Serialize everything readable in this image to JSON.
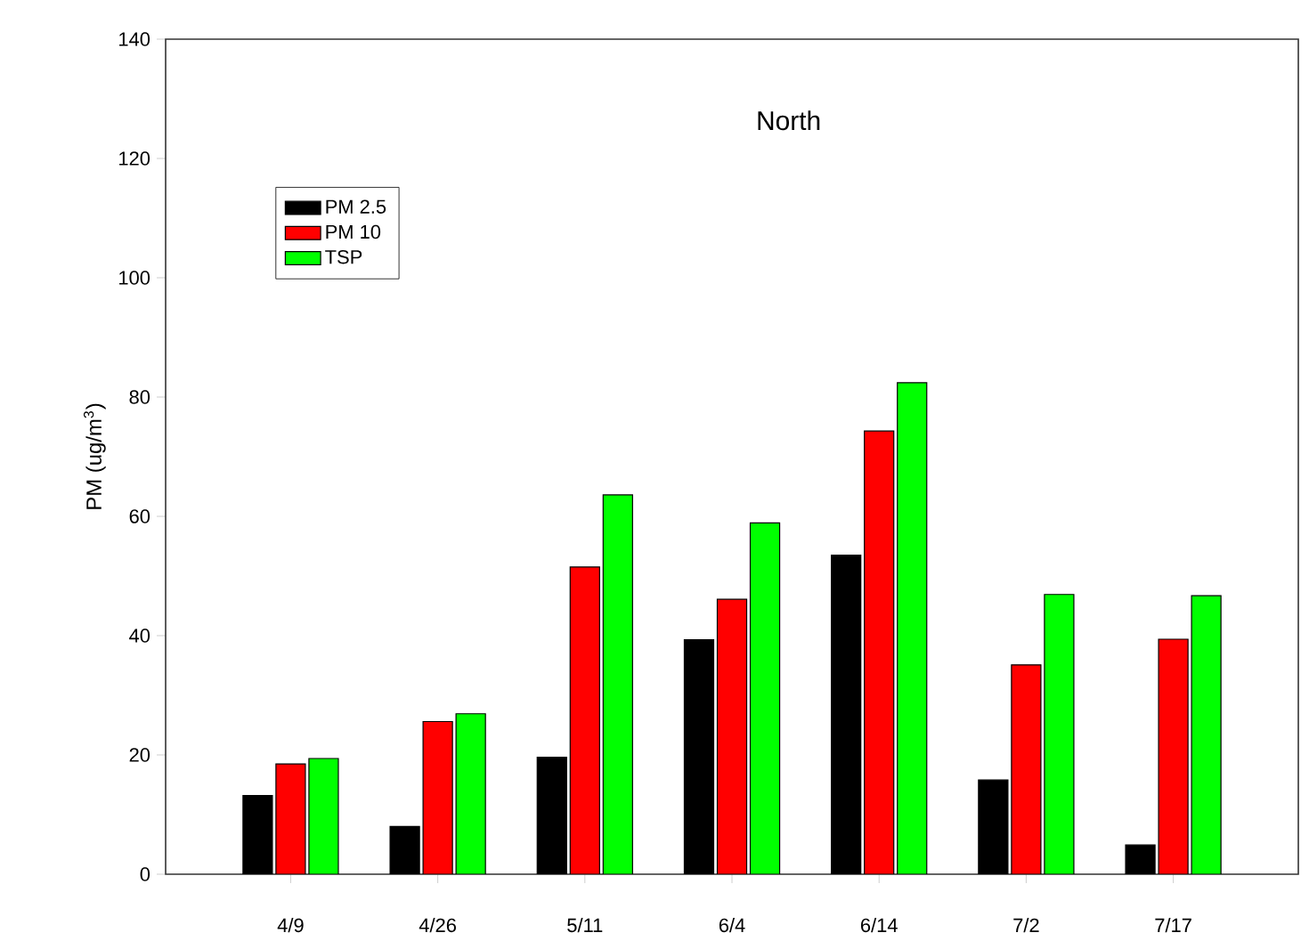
{
  "chart_data": {
    "type": "bar",
    "title": "North",
    "ylabel": "PM (ug/m$^{3}$)",
    "categories": [
      "4/9",
      "4/26",
      "5/11",
      "6/4",
      "6/14",
      "7/2",
      "7/17"
    ],
    "series": [
      {
        "name": "PM 2.5",
        "color": "#000000",
        "values": [
          13.2,
          8.0,
          19.6,
          39.3,
          53.5,
          15.8,
          4.9
        ]
      },
      {
        "name": "PM 10",
        "color": "#ff0000",
        "values": [
          18.5,
          25.6,
          51.5,
          46.1,
          74.3,
          35.1,
          39.4
        ]
      },
      {
        "name": "TSP",
        "color": "#00ff00",
        "values": [
          19.4,
          26.9,
          63.6,
          58.9,
          82.4,
          46.9,
          46.7
        ]
      }
    ],
    "ylim": [
      0,
      140
    ],
    "yticks": [
      0,
      20,
      40,
      60,
      80,
      100,
      120,
      140
    ],
    "grid": false,
    "legend": "top left"
  }
}
